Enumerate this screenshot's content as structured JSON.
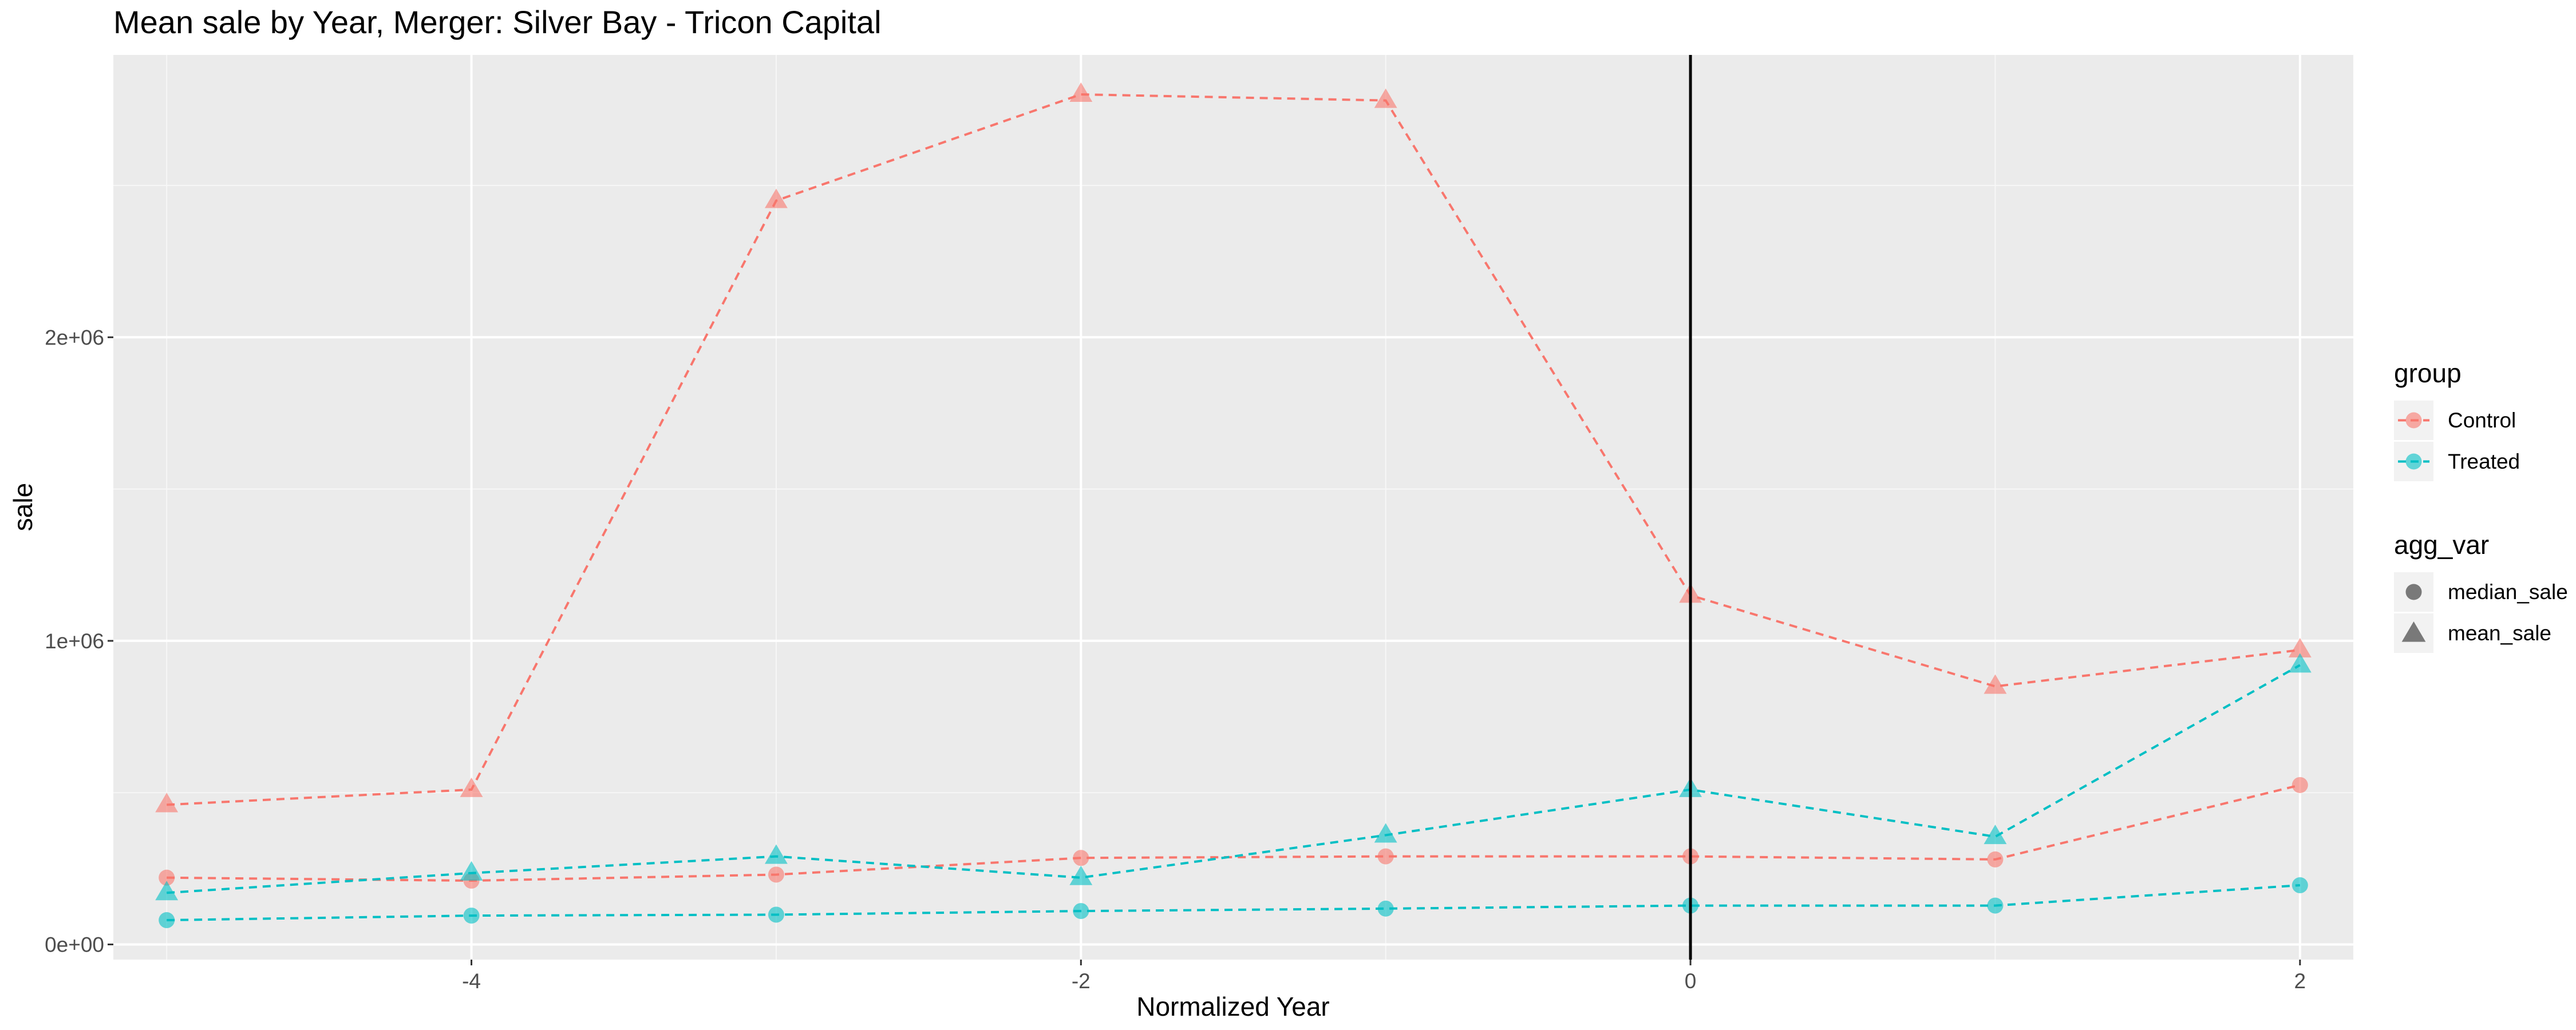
{
  "chart_data": {
    "type": "line",
    "title": "Mean sale by Year, Merger: Silver Bay - Tricon Capital",
    "xlabel": "Normalized Year",
    "ylabel": "sale",
    "xlim": [
      -5.175,
      2.175
    ],
    "ylim": [
      -50000,
      2930000
    ],
    "x_ticks": [
      -4,
      -2,
      0,
      2
    ],
    "x_tick_labels": [
      "-4",
      "-2",
      "0",
      "2"
    ],
    "y_ticks": [
      0,
      1000000,
      2000000
    ],
    "y_tick_labels": [
      "0e+00",
      "1e+06",
      "2e+06"
    ],
    "vline_x": 0,
    "grid": true,
    "legend_position": "right",
    "x": [
      -5,
      -4,
      -3,
      -2,
      -1,
      0,
      1,
      2
    ],
    "series": [
      {
        "group": "Control",
        "agg_var": "mean_sale",
        "color": "#F8766D",
        "marker": "triangle",
        "values": [
          460000,
          510000,
          2450000,
          2800000,
          2780000,
          1150000,
          850000,
          970000
        ]
      },
      {
        "group": "Control",
        "agg_var": "median_sale",
        "color": "#F8766D",
        "marker": "circle",
        "values": [
          220000,
          210000,
          230000,
          285000,
          290000,
          290000,
          280000,
          525000
        ]
      },
      {
        "group": "Treated",
        "agg_var": "mean_sale",
        "color": "#00BFC4",
        "marker": "triangle",
        "values": [
          170000,
          235000,
          290000,
          220000,
          360000,
          510000,
          355000,
          920000
        ]
      },
      {
        "group": "Treated",
        "agg_var": "median_sale",
        "color": "#00BFC4",
        "marker": "circle",
        "values": [
          80000,
          95000,
          98000,
          110000,
          118000,
          128000,
          128000,
          195000
        ]
      }
    ],
    "legend": {
      "group": {
        "title": "group",
        "entries": [
          {
            "label": "Control",
            "color": "#F8766D"
          },
          {
            "label": "Treated",
            "color": "#00BFC4"
          }
        ]
      },
      "agg_var": {
        "title": "agg_var",
        "entries": [
          {
            "label": "median_sale",
            "marker": "circle"
          },
          {
            "label": "mean_sale",
            "marker": "triangle"
          }
        ]
      }
    }
  }
}
